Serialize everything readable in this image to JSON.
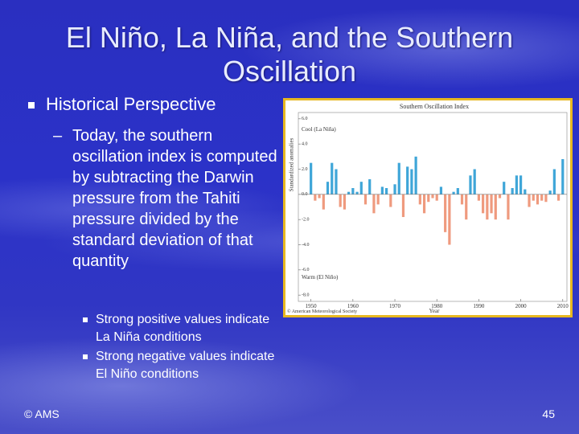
{
  "title": "El Niño, La Niña, and the Southern Oscillation",
  "bullet": {
    "text": "Historical Perspective",
    "sub": {
      "text": "Today, the southern oscillation index is computed by subtracting the Darwin pressure from the Tahiti pressure divided by the standard deviation of that quantity",
      "items": [
        "Strong positive values indicate La Niña conditions",
        "Strong negative values indicate El Niño conditions"
      ]
    }
  },
  "footer": "© AMS",
  "page_number": 45,
  "chart_data": {
    "type": "bar",
    "title": "Southern Oscillation Index",
    "x_label": "Year",
    "y_label": "Standardized anomalies",
    "annotations": [
      "Cool (La Niña)",
      "Warm (El Niño)"
    ],
    "credit": "© American Meteorological Society",
    "x": [
      1950,
      1951,
      1952,
      1953,
      1954,
      1955,
      1956,
      1957,
      1958,
      1959,
      1960,
      1961,
      1962,
      1963,
      1964,
      1965,
      1966,
      1967,
      1968,
      1969,
      1970,
      1971,
      1972,
      1973,
      1974,
      1975,
      1976,
      1977,
      1978,
      1979,
      1980,
      1981,
      1982,
      1983,
      1984,
      1985,
      1986,
      1987,
      1988,
      1989,
      1990,
      1991,
      1992,
      1993,
      1994,
      1995,
      1996,
      1997,
      1998,
      1999,
      2000,
      2001,
      2002,
      2003,
      2004,
      2005,
      2006,
      2007,
      2008,
      2009,
      2010
    ],
    "series": [
      {
        "color": "#3fa6d8",
        "negative_color": "#ef9a7e",
        "values": [
          2.5,
          -0.5,
          -0.3,
          -1.2,
          1.0,
          2.5,
          2.0,
          -1.0,
          -1.2,
          0.2,
          0.5,
          0.2,
          1.0,
          -0.8,
          1.2,
          -1.5,
          -0.8,
          0.6,
          0.5,
          -1.0,
          0.8,
          2.5,
          -1.8,
          2.2,
          2.0,
          3.0,
          -0.8,
          -1.5,
          -0.6,
          -0.3,
          -0.5,
          0.6,
          -3.0,
          -4.0,
          0.2,
          0.5,
          -0.8,
          -2.0,
          1.5,
          2.0,
          -0.5,
          -1.5,
          -2.0,
          -1.5,
          -2.0,
          -0.3,
          1.0,
          -2.0,
          0.5,
          1.5,
          1.5,
          0.4,
          -1.0,
          -0.5,
          -0.8,
          -0.5,
          -0.6,
          0.3,
          2.0,
          -0.5,
          2.8
        ]
      }
    ],
    "xlim": [
      1947,
      2011
    ],
    "xticks": [
      1950,
      1960,
      1970,
      1980,
      1990,
      2000,
      2010
    ],
    "ylim": [
      -8.5,
      6.5
    ],
    "yticks": [
      {
        "value": 6,
        "label": "6.0"
      },
      {
        "value": 4,
        "label": "4.0"
      },
      {
        "value": 2,
        "label": "2.0"
      },
      {
        "value": 0,
        "label": "0.0"
      },
      {
        "value": -2,
        "label": "-2.0"
      },
      {
        "value": -4,
        "label": "-4.0"
      },
      {
        "value": -6,
        "label": "-6.0"
      },
      {
        "value": -8,
        "label": "-8.0"
      }
    ],
    "zero_line": true
  }
}
